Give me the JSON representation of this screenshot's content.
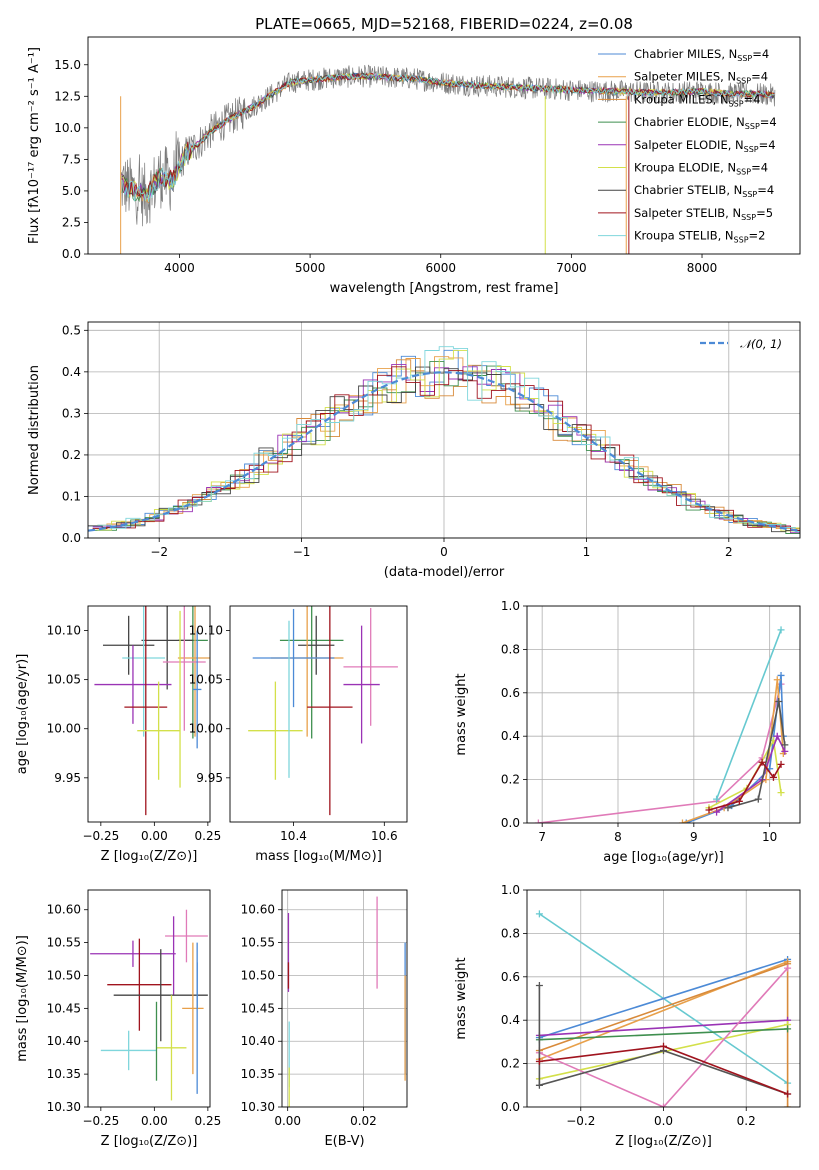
{
  "colors": {
    "c1": "#4c8ad6",
    "c2": "#e8a04a",
    "c3": "#d88a3a",
    "c4": "#3f8f4f",
    "c5": "#9a33b5",
    "c6": "#d3e04a",
    "c7": "#444444",
    "c8": "#a0141e",
    "c9": "#7fd6dc",
    "pink": "#e07ab8",
    "gray": "#7a7a7a",
    "lgreen": "#b8e070",
    "dgray": "#555555",
    "teal": "#66c9d0"
  },
  "chart_data": [
    {
      "type": "line",
      "id": "spectrum",
      "title": "PLATE=0665, MJD=52168, FIBERID=0224, z=0.08",
      "xlabel": "wavelength [Angstrom, rest frame]",
      "ylabel": "Flux [fλ10⁻¹⁷ erg cm⁻² s⁻¹ A⁻¹]",
      "xlim": [
        3300,
        8750
      ],
      "ylim": [
        0,
        17.2
      ],
      "xticks": [
        "4000",
        "5000",
        "6000",
        "7000",
        "8000"
      ],
      "yticks": [
        "0.0",
        "2.5",
        "5.0",
        "7.5",
        "10.0",
        "12.5",
        "15.0"
      ],
      "spectrum_anchors": {
        "x": [
          3550,
          3650,
          3750,
          3850,
          3950,
          4050,
          4150,
          4250,
          4400,
          4550,
          4700,
          4850,
          5000,
          5200,
          5400,
          5600,
          5800,
          6000,
          6200,
          6400,
          6600,
          6800,
          7000,
          7200,
          7400,
          7600,
          7800,
          8000,
          8200,
          8400,
          8550
        ],
        "y": [
          5.6,
          5.0,
          4.6,
          6.2,
          5.8,
          8.0,
          8.8,
          9.8,
          10.8,
          11.6,
          12.6,
          13.6,
          13.8,
          14.0,
          14.1,
          14.0,
          13.9,
          13.6,
          13.4,
          13.3,
          13.2,
          13.1,
          13.0,
          12.9,
          12.9,
          12.8,
          12.8,
          12.9,
          12.7,
          12.7,
          12.6
        ]
      },
      "legend": [
        {
          "label": "Chabrier MILES, N",
          "sub": "SSP",
          "suffix": "=4",
          "color": "c1"
        },
        {
          "label": "Salpeter MILES, N",
          "sub": "SSP",
          "suffix": "=4",
          "color": "c2"
        },
        {
          "label": "Kroupa MILES, N",
          "sub": "SSP",
          "suffix": "=4",
          "color": "c3"
        },
        {
          "label": "Chabrier ELODIE, N",
          "sub": "SSP",
          "suffix": "=4",
          "color": "c4"
        },
        {
          "label": "Salpeter ELODIE, N",
          "sub": "SSP",
          "suffix": "=4",
          "color": "c5"
        },
        {
          "label": "Kroupa ELODIE, N",
          "sub": "SSP",
          "suffix": "=4",
          "color": "c6"
        },
        {
          "label": "Chabrier STELIB, N",
          "sub": "SSP",
          "suffix": "=4",
          "color": "c7"
        },
        {
          "label": "Salpeter STELIB, N",
          "sub": "SSP",
          "suffix": "=5",
          "color": "c8"
        },
        {
          "label": "Kroupa STELIB, N",
          "sub": "SSP",
          "suffix": "=2",
          "color": "c9"
        }
      ]
    },
    {
      "type": "line",
      "id": "residuals",
      "xlabel": "(data-model)/error",
      "ylabel": "Normed distribution",
      "xlim": [
        -2.5,
        2.5
      ],
      "ylim": [
        0,
        0.52
      ],
      "xticks": [
        "−2",
        "−1",
        "0",
        "1",
        "2"
      ],
      "yticks": [
        "0.0",
        "0.1",
        "0.2",
        "0.3",
        "0.4",
        "0.5"
      ],
      "grid": true,
      "legend": [
        {
          "label": "𝒩(0, 1)",
          "color": "c1"
        }
      ],
      "series_count": 9
    },
    {
      "type": "scatter",
      "id": "age_vs_Z",
      "xlabel": "Z [log₁₀(Z/Z⊙)]",
      "ylabel": "age  [log₁₀(age/yr)]",
      "xlim": [
        -0.31,
        0.26
      ],
      "ylim": [
        9.905,
        10.125
      ],
      "xticks": [
        "−0.25",
        "0.00",
        "0.25"
      ],
      "yticks": [
        "9.95",
        "10.00",
        "10.05",
        "10.10"
      ],
      "points": [
        {
          "x": 0.18,
          "y": 10.09,
          "xerr": 0.07,
          "yerr": 0.1,
          "color": "c4"
        },
        {
          "x": 0.06,
          "y": 10.09,
          "xerr": 0.12,
          "yerr": 0.05,
          "color": "c7"
        },
        {
          "x": -0.12,
          "y": 10.085,
          "xerr": 0.12,
          "yerr": 0.03,
          "color": "c7"
        },
        {
          "x": 0.19,
          "y": 10.072,
          "xerr": 0.08,
          "yerr": 0.08,
          "color": "c2"
        },
        {
          "x": -0.05,
          "y": 10.072,
          "xerr": 0.1,
          "yerr": 0.08,
          "color": "c9"
        },
        {
          "x": 0.14,
          "y": 10.068,
          "xerr": 0.1,
          "yerr": 0.07,
          "color": "pink"
        },
        {
          "x": -0.1,
          "y": 10.045,
          "xerr": 0.18,
          "yerr": 0.04,
          "color": "c5"
        },
        {
          "x": 0.2,
          "y": 10.04,
          "xerr": 0.02,
          "yerr": 0.06,
          "color": "c1"
        },
        {
          "x": -0.04,
          "y": 10.022,
          "xerr": 0.1,
          "yerr": 0.11,
          "color": "c8"
        },
        {
          "x": 0.02,
          "y": 9.998,
          "xerr": 0.1,
          "yerr": 0.05,
          "color": "c6"
        },
        {
          "x": 0.12,
          "y": 10.03,
          "xerr": 0.0,
          "yerr": 0.09,
          "color": "c6"
        }
      ]
    },
    {
      "type": "scatter",
      "id": "age_vs_mass",
      "xlabel": "mass [log₁₀(M/M⊙)]",
      "xlim": [
        10.26,
        10.65
      ],
      "ylim": [
        9.905,
        10.125
      ],
      "xticks": [
        "10.4",
        "10.6"
      ],
      "yticks": [
        "9.95",
        "10.00",
        "10.05",
        "10.10"
      ],
      "points": [
        {
          "x": 10.44,
          "y": 10.09,
          "xerr": 0.07,
          "yerr": 0.1,
          "color": "c4"
        },
        {
          "x": 10.45,
          "y": 10.085,
          "xerr": 0.04,
          "yerr": 0.03,
          "color": "c7"
        },
        {
          "x": 10.43,
          "y": 10.072,
          "xerr": 0.08,
          "yerr": 0.08,
          "color": "c2"
        },
        {
          "x": 10.4,
          "y": 10.072,
          "xerr": 0.09,
          "yerr": 0.05,
          "color": "c1"
        },
        {
          "x": 10.57,
          "y": 10.063,
          "xerr": 0.06,
          "yerr": 0.06,
          "color": "pink"
        },
        {
          "x": 10.55,
          "y": 10.045,
          "xerr": 0.04,
          "yerr": 0.06,
          "color": "c5"
        },
        {
          "x": 10.48,
          "y": 10.022,
          "xerr": 0.05,
          "yerr": 0.11,
          "color": "c8"
        },
        {
          "x": 10.36,
          "y": 9.998,
          "xerr": 0.06,
          "yerr": 0.05,
          "color": "c6"
        },
        {
          "x": 10.39,
          "y": 10.03,
          "xerr": 0.0,
          "yerr": 0.08,
          "color": "c9"
        }
      ]
    },
    {
      "type": "line",
      "id": "weight_vs_age",
      "xlabel": "age  [log₁₀(age/yr)]",
      "ylabel": "mass weight",
      "xlim": [
        6.8,
        10.4
      ],
      "ylim": [
        0,
        1.0
      ],
      "xticks": [
        "7",
        "8",
        "9",
        "10"
      ],
      "yticks": [
        "0.0",
        "0.2",
        "0.4",
        "0.6",
        "0.8",
        "1.0"
      ],
      "grid": true,
      "series": [
        {
          "color": "pink",
          "x": [
            6.95,
            9.3,
            9.9,
            10.15
          ],
          "y": [
            0.0,
            0.1,
            0.3,
            0.64
          ]
        },
        {
          "color": "c1",
          "x": [
            8.9,
            9.5,
            10.0,
            10.15,
            10.18
          ],
          "y": [
            0.0,
            0.08,
            0.25,
            0.68,
            0.4
          ]
        },
        {
          "color": "c2",
          "x": [
            8.85,
            9.4,
            9.95,
            10.1,
            10.18
          ],
          "y": [
            0.0,
            0.07,
            0.2,
            0.66,
            0.32
          ]
        },
        {
          "color": "teal",
          "x": [
            9.3,
            10.15
          ],
          "y": [
            0.11,
            0.89
          ]
        },
        {
          "color": "c6",
          "x": [
            9.2,
            9.7,
            10.05,
            10.15
          ],
          "y": [
            0.07,
            0.16,
            0.38,
            0.14
          ]
        },
        {
          "color": "c5",
          "x": [
            9.3,
            9.9,
            10.1,
            10.2
          ],
          "y": [
            0.05,
            0.2,
            0.4,
            0.33
          ]
        },
        {
          "color": "dgray",
          "x": [
            9.45,
            9.85,
            10.12,
            10.2
          ],
          "y": [
            0.07,
            0.11,
            0.56,
            0.36
          ]
        },
        {
          "color": "c8",
          "x": [
            9.2,
            9.6,
            9.9,
            10.05,
            10.15
          ],
          "y": [
            0.06,
            0.1,
            0.28,
            0.21,
            0.27
          ]
        }
      ]
    },
    {
      "type": "scatter",
      "id": "mass_vs_Z",
      "xlabel": "Z [log₁₀(Z/Z⊙)]",
      "ylabel": "mass [log₁₀(M/M⊙)]",
      "xlim": [
        -0.31,
        0.26
      ],
      "ylim": [
        10.3,
        10.63
      ],
      "xticks": [
        "−0.25",
        "0.00",
        "0.25"
      ],
      "yticks": [
        "10.30",
        "10.35",
        "10.40",
        "10.45",
        "10.50",
        "10.55",
        "10.60"
      ],
      "points": [
        {
          "x": 0.15,
          "y": 10.56,
          "xerr": 0.1,
          "yerr": 0.04,
          "color": "pink"
        },
        {
          "x": -0.1,
          "y": 10.533,
          "xerr": 0.2,
          "yerr": 0.02,
          "color": "c5"
        },
        {
          "x": 0.09,
          "y": 10.53,
          "xerr": 0.0,
          "yerr": 0.06,
          "color": "c5"
        },
        {
          "x": 0.2,
          "y": 10.5,
          "xerr": 0.0,
          "yerr": 0.05,
          "color": "c1"
        },
        {
          "x": -0.07,
          "y": 10.486,
          "xerr": 0.15,
          "yerr": 0.07,
          "color": "c8"
        },
        {
          "x": 0.03,
          "y": 10.47,
          "xerr": 0.22,
          "yerr": 0.07,
          "color": "c7"
        },
        {
          "x": 0.18,
          "y": 10.45,
          "xerr": 0.05,
          "yerr": 0.1,
          "color": "c2"
        },
        {
          "x": 0.2,
          "y": 10.42,
          "xerr": 0.0,
          "yerr": 0.1,
          "color": "c1"
        },
        {
          "x": 0.08,
          "y": 10.39,
          "xerr": 0.07,
          "yerr": 0.08,
          "color": "c6"
        },
        {
          "x": -0.12,
          "y": 10.386,
          "xerr": 0.13,
          "yerr": 0.03,
          "color": "c9"
        },
        {
          "x": 0.01,
          "y": 10.4,
          "xerr": 0.0,
          "yerr": 0.06,
          "color": "c4"
        }
      ]
    },
    {
      "type": "scatter",
      "id": "mass_vs_EBV",
      "xlabel": "E(B-V)",
      "xlim": [
        -0.0015,
        0.0315
      ],
      "ylim": [
        10.3,
        10.63
      ],
      "xticks": [
        "0.00",
        "0.02"
      ],
      "yticks": [
        "10.30",
        "10.35",
        "10.40",
        "10.45",
        "10.50",
        "10.55",
        "10.60"
      ],
      "grid": true,
      "points": [
        {
          "x": 0.0002,
          "y": 10.535,
          "yerr": 0.06,
          "color": "c5"
        },
        {
          "x": 0.0002,
          "y": 10.5,
          "yerr": 0.02,
          "color": "c8"
        },
        {
          "x": 0.0004,
          "y": 10.38,
          "yerr": 0.05,
          "color": "c9"
        },
        {
          "x": 0.0004,
          "y": 10.33,
          "yerr": 0.03,
          "color": "c6"
        },
        {
          "x": 0.0236,
          "y": 10.55,
          "yerr": 0.07,
          "color": "pink"
        },
        {
          "x": 0.031,
          "y": 10.45,
          "yerr": 0.1,
          "color": "c1"
        },
        {
          "x": 0.031,
          "y": 10.42,
          "yerr": 0.08,
          "color": "c2"
        }
      ]
    },
    {
      "type": "line",
      "id": "weight_vs_Z",
      "xlabel": "Z [log₁₀(Z/Z⊙)]",
      "ylabel": "mass weight",
      "xlim": [
        -0.33,
        0.33
      ],
      "ylim": [
        0,
        1.0
      ],
      "xticks": [
        "−0.2",
        "0.0",
        "0.2"
      ],
      "yticks": [
        "0.0",
        "0.2",
        "0.4",
        "0.6",
        "0.8",
        "1.0"
      ],
      "grid": true,
      "series": [
        {
          "color": "teal",
          "x": [
            -0.3,
            0.3
          ],
          "y": [
            0.89,
            0.11
          ]
        },
        {
          "color": "c1",
          "x": [
            -0.3,
            0.3
          ],
          "y": [
            0.32,
            0.68
          ]
        },
        {
          "color": "c2",
          "x": [
            -0.3,
            0.3
          ],
          "y": [
            0.22,
            0.67
          ]
        },
        {
          "color": "c3",
          "x": [
            -0.3,
            0.3,
            0.3
          ],
          "y": [
            0.26,
            0.66,
            0.0
          ]
        },
        {
          "color": "c5",
          "x": [
            -0.3,
            0.3
          ],
          "y": [
            0.33,
            0.4
          ]
        },
        {
          "color": "c6",
          "x": [
            -0.3,
            0.3
          ],
          "y": [
            0.13,
            0.38
          ]
        },
        {
          "color": "c4",
          "x": [
            -0.3,
            0.3
          ],
          "y": [
            0.31,
            0.36
          ]
        },
        {
          "color": "pink",
          "x": [
            -0.3,
            0.0,
            0.3
          ],
          "y": [
            0.25,
            0.0,
            0.64
          ]
        },
        {
          "color": "dgray",
          "x": [
            -0.3,
            -0.3,
            0.0,
            0.3
          ],
          "y": [
            0.56,
            0.1,
            0.26,
            0.06
          ]
        },
        {
          "color": "c8",
          "x": [
            -0.3,
            0.0,
            0.3
          ],
          "y": [
            0.21,
            0.28,
            0.06
          ]
        }
      ]
    }
  ]
}
